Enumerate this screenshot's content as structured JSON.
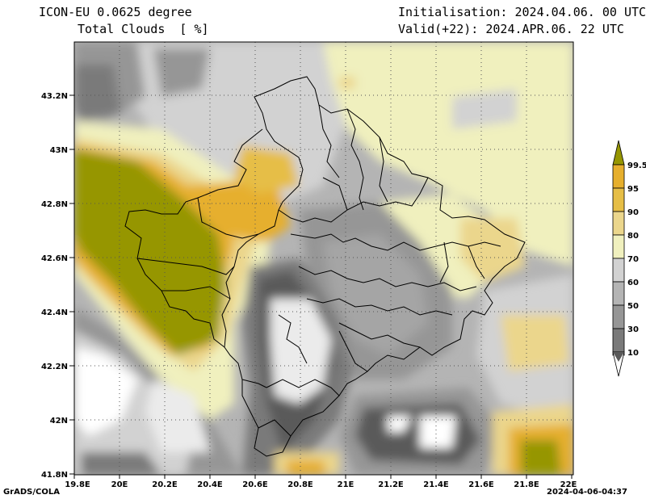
{
  "header": {
    "model": "ICON-EU 0.0625 degree",
    "variable": "Total Clouds  [ %]",
    "init": "Initialisation: 2024.04.06. 00 UTC",
    "valid": "Valid(+22): 2024.APR.06. 22 UTC"
  },
  "axes": {
    "lat_labels": [
      "43.2N",
      "43N",
      "42.8N",
      "42.6N",
      "42.4N",
      "42.2N",
      "42N",
      "41.8N"
    ],
    "lon_labels": [
      "19.8E",
      "20E",
      "20.2E",
      "20.4E",
      "20.6E",
      "20.8E",
      "21E",
      "21.2E",
      "21.4E",
      "21.6E",
      "21.8E",
      "22E"
    ]
  },
  "colorbar": {
    "labels": [
      "99.5",
      "95",
      "90",
      "80",
      "70",
      "60",
      "50",
      "30",
      "10"
    ],
    "colors": [
      "#969600",
      "#e6af2d",
      "#e6be46",
      "#ebd68c",
      "#f0f0be",
      "#d2d2d2",
      "#b4b4b4",
      "#969696",
      "#7a7a7a",
      "#5a5a5a",
      "#ffffff"
    ]
  },
  "footer": {
    "left": "GrADS/COLA",
    "right": "2024-04-06-04:37"
  }
}
